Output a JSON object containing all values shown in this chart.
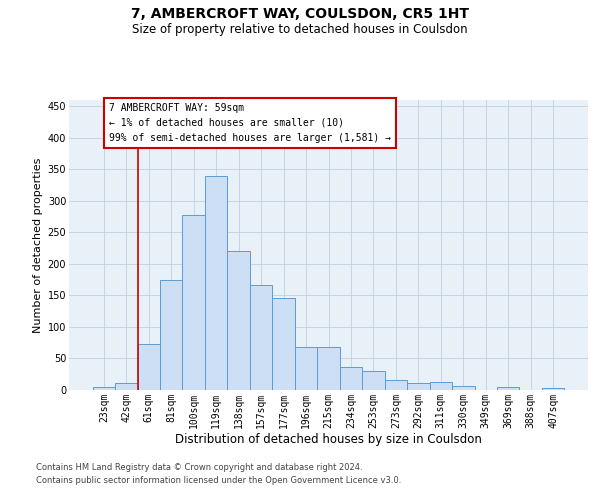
{
  "title": "7, AMBERCROFT WAY, COULSDON, CR5 1HT",
  "subtitle": "Size of property relative to detached houses in Coulsdon",
  "xlabel": "Distribution of detached houses by size in Coulsdon",
  "ylabel": "Number of detached properties",
  "bar_color": "#ccdff5",
  "bar_edge_color": "#5b9bd5",
  "background_color": "#e8f0f8",
  "grid_color": "#c0cfe0",
  "categories": [
    "23sqm",
    "42sqm",
    "61sqm",
    "81sqm",
    "100sqm",
    "119sqm",
    "138sqm",
    "157sqm",
    "177sqm",
    "196sqm",
    "215sqm",
    "234sqm",
    "253sqm",
    "273sqm",
    "292sqm",
    "311sqm",
    "330sqm",
    "349sqm",
    "369sqm",
    "388sqm",
    "407sqm"
  ],
  "values": [
    4,
    11,
    73,
    175,
    277,
    340,
    221,
    167,
    146,
    68,
    68,
    36,
    30,
    16,
    11,
    13,
    6,
    0,
    4,
    0,
    3
  ],
  "vline_position": 1.5,
  "vline_color": "#cc0000",
  "annotation_line1": "7 AMBERCROFT WAY: 59sqm",
  "annotation_line2": "← 1% of detached houses are smaller (10)",
  "annotation_line3": "99% of semi-detached houses are larger (1,581) →",
  "annotation_box_facecolor": "#ffffff",
  "annotation_box_edgecolor": "#cc0000",
  "footer1": "Contains HM Land Registry data © Crown copyright and database right 2024.",
  "footer2": "Contains public sector information licensed under the Open Government Licence v3.0.",
  "ylim": [
    0,
    460
  ],
  "yticks": [
    0,
    50,
    100,
    150,
    200,
    250,
    300,
    350,
    400,
    450
  ],
  "title_fontsize": 10,
  "subtitle_fontsize": 8.5,
  "annotation_fontsize": 7,
  "ylabel_fontsize": 8,
  "xlabel_fontsize": 8.5,
  "tick_fontsize": 7,
  "footer_fontsize": 6
}
